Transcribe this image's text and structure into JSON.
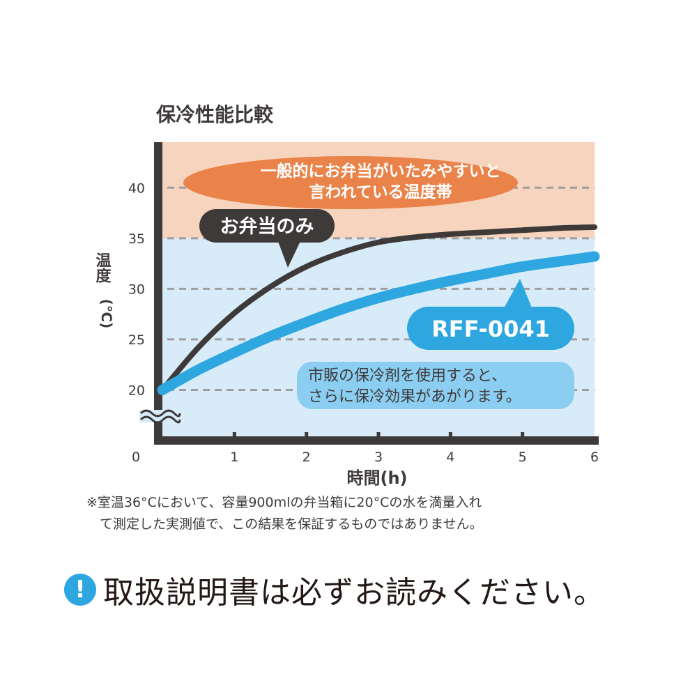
{
  "chart_data": {
    "type": "line",
    "title": "保冷性能比較",
    "xlabel": "時間(h)",
    "ylabel": "温度(℃)",
    "ylabel_main": "温度",
    "ylabel_unit": "(℃)",
    "x_ticks": [
      "0",
      "1",
      "2",
      "3",
      "4",
      "5",
      "6"
    ],
    "y_ticks": [
      20,
      25,
      30,
      35,
      40
    ],
    "xlim": [
      0,
      6
    ],
    "ylim": [
      15,
      44.5
    ],
    "grid": true,
    "axis_break": true,
    "series": [
      {
        "name": "お弁当のみ",
        "color": "#3e3a39",
        "x": [
          0,
          0.5,
          1,
          1.5,
          2,
          2.5,
          3,
          3.5,
          4,
          4.5,
          5,
          5.5,
          6
        ],
        "values": [
          20,
          24.2,
          27.6,
          30.2,
          32.2,
          33.6,
          34.6,
          35.1,
          35.4,
          35.6,
          35.8,
          36.0,
          36.1
        ]
      },
      {
        "name": "RFF-0041",
        "color": "#2ea7e0",
        "x": [
          0,
          0.5,
          1,
          1.5,
          2,
          2.5,
          3,
          3.5,
          4,
          4.5,
          5,
          5.5,
          6
        ],
        "values": [
          20,
          22.0,
          23.7,
          25.3,
          26.7,
          28.0,
          29.1,
          30.0,
          30.8,
          31.5,
          32.2,
          32.7,
          33.2
        ]
      }
    ],
    "bands": [
      {
        "name": "danger_zone",
        "from": 35,
        "to": 44.5,
        "color": "#f7d4bd"
      },
      {
        "name": "safe_zone",
        "from": 15,
        "to": 35,
        "color": "#d7ebf9"
      }
    ],
    "annotations": {
      "zone_line1": "一般的にお弁当がいたみやすいと",
      "zone_line2": "言われている温度帯",
      "lunch_only": "お弁当のみ",
      "product": "RFF-0041",
      "effect_line1": "市販の保冷剤を使用すると、",
      "effect_line2": "さらに保冷効果があがります。"
    },
    "colors": {
      "zone_bubble": "#e9834a",
      "lunch_bubble": "#3e3a39",
      "product_bubble": "#2ea7e0",
      "effect_bubble": "#8ccdf2"
    }
  },
  "notes": {
    "line1": "※室温36°Cにおいて、容量900mlの弁当箱に20°Cの水を満量入れ",
    "line2": "　て測定した実測値で、この結果を保証するものではありません。"
  },
  "notice": {
    "icon": "exclamation-icon",
    "icon_char": "!",
    "text": "取扱説明書は必ずお読みください。"
  }
}
